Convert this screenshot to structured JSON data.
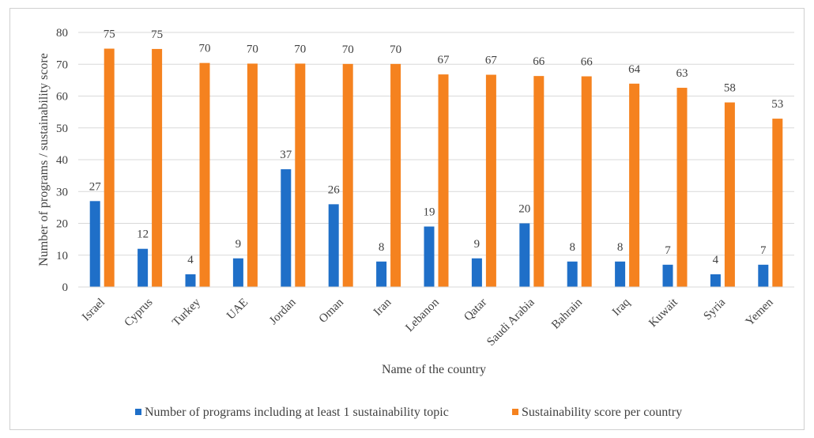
{
  "chart_data": {
    "type": "bar",
    "title": "",
    "xlabel": "Name of the country",
    "ylabel": "Number of programs / sustainability score",
    "ylim": [
      0,
      80
    ],
    "yticks": [
      0,
      10,
      20,
      30,
      40,
      50,
      60,
      70,
      80
    ],
    "grid": true,
    "legend_position": "bottom",
    "categories": [
      "Israel",
      "Cyprus",
      "Turkey",
      "UAE",
      "Jordan",
      "Oman",
      "Iran",
      "Lebanon",
      "Qatar",
      "Saudi Arabia",
      "Bahrain",
      "Iraq",
      "Kuwait",
      "Syria",
      "Yemen"
    ],
    "series": [
      {
        "name": "Number of programs including at least 1 sustainability topic",
        "color": "#1f6fc8",
        "values": [
          27,
          12,
          4,
          9,
          37,
          26,
          8,
          19,
          9,
          20,
          8,
          8,
          7,
          4,
          7
        ],
        "labels": [
          "27",
          "12",
          "4",
          "9",
          "37",
          "26",
          "8",
          "19",
          "9",
          "20",
          "8",
          "8",
          "7",
          "4",
          "7"
        ]
      },
      {
        "name": "Sustainability score per country",
        "color": "#f5821f",
        "values": [
          74.9,
          74.8,
          70.4,
          70.2,
          70.2,
          70.1,
          70.1,
          66.8,
          66.7,
          66.3,
          66.2,
          63.9,
          62.6,
          58.0,
          52.9
        ],
        "labels": [
          "75",
          "75",
          "70",
          "70",
          "70",
          "70",
          "70",
          "67",
          "67",
          "66",
          "66",
          "64",
          "63",
          "58",
          "53"
        ]
      }
    ]
  }
}
